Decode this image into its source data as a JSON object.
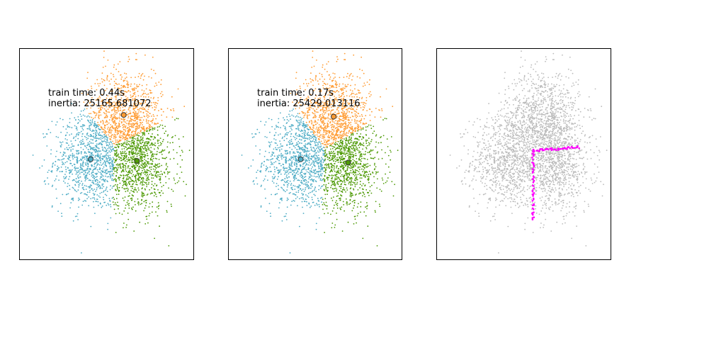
{
  "chart_data": [
    {
      "type": "scatter",
      "axes_visible": false,
      "cluster_colors": [
        "#4EACC5",
        "#FF9C34",
        "#4E9A06"
      ],
      "point_count_per_cluster": 1000,
      "annotation": [
        "train time: 0.44s",
        "inertia: 25165.681072"
      ],
      "centroids": [
        {
          "x": -0.9,
          "y": -0.05,
          "color": "#4EACC5"
        },
        {
          "x": 0.35,
          "y": 1.25,
          "color": "#FF9C34"
        },
        {
          "x": 0.85,
          "y": -0.1,
          "color": "#4E9A06"
        }
      ]
    },
    {
      "type": "scatter",
      "axes_visible": false,
      "cluster_colors": [
        "#4EACC5",
        "#FF9C34",
        "#4E9A06"
      ],
      "point_count_per_cluster": 1000,
      "annotation": [
        "train time: 0.17s",
        "inertia: 25429.013116"
      ],
      "centroids": [
        {
          "x": -0.85,
          "y": -0.05,
          "color": "#4EACC5"
        },
        {
          "x": 0.4,
          "y": 1.2,
          "color": "#FF9C34"
        },
        {
          "x": 0.95,
          "y": -0.15,
          "color": "#4E9A06"
        }
      ]
    },
    {
      "type": "scatter",
      "axes_visible": false,
      "base_color": "#bbbbbb",
      "highlight_color": "#FF00FF",
      "point_count": 3000,
      "highlight_segments": [
        {
          "from": [
            0.05,
            0.2
          ],
          "to": [
            0.05,
            -1.85
          ]
        },
        {
          "from": [
            0.05,
            0.2
          ],
          "to": [
            1.8,
            0.3
          ]
        }
      ]
    }
  ]
}
